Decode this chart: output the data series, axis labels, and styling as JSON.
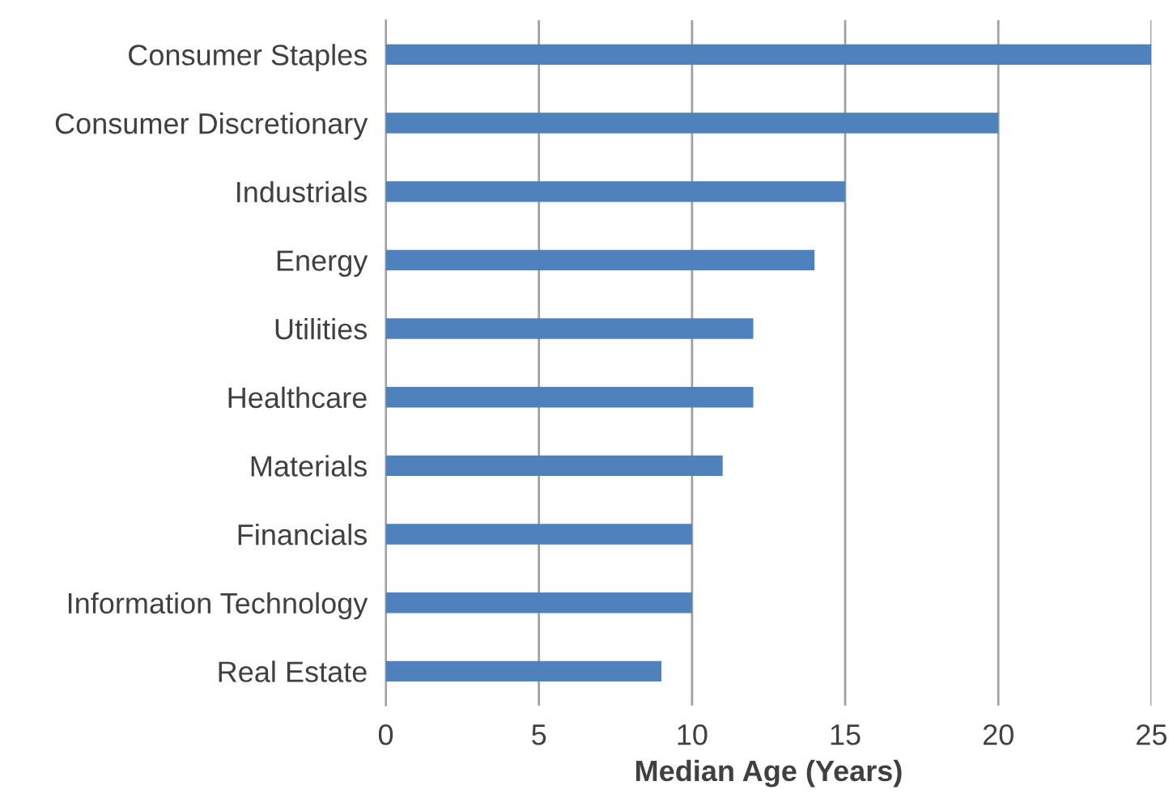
{
  "chart_data": {
    "type": "bar",
    "orientation": "horizontal",
    "xlabel": "Median Age (Years)",
    "categories": [
      "Consumer Staples",
      "Consumer Discretionary",
      "Industrials",
      "Energy",
      "Utilities",
      "Healthcare",
      "Materials",
      "Financials",
      "Information Technology",
      "Real Estate"
    ],
    "values": [
      25,
      20,
      15,
      14,
      12,
      12,
      11,
      10,
      10,
      9
    ],
    "color": "#4f81bd",
    "xlim": [
      0,
      25
    ],
    "xticks": [
      0,
      5,
      10,
      15,
      20,
      25
    ],
    "grid": "x"
  }
}
